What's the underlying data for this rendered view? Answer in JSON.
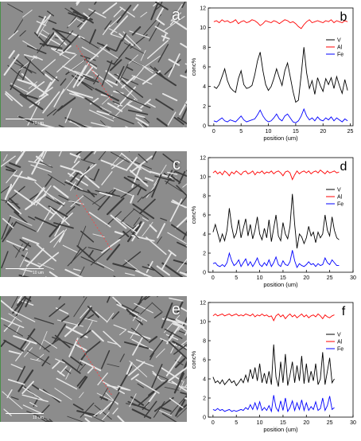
{
  "panels": [
    {
      "letter": "a",
      "scale_label": "10 um"
    },
    {
      "letter": "c",
      "scale_label": "10 um"
    },
    {
      "letter": "e",
      "scale_label": "10 um"
    }
  ],
  "chart_data": [
    {
      "type": "line",
      "letter": "b",
      "xlabel": "position (um)",
      "ylabel": "conc%",
      "xlim": [
        -1,
        25.5
      ],
      "ylim": [
        0,
        12
      ],
      "xticks": [
        0,
        5,
        10,
        15,
        20,
        25
      ],
      "yticks": [
        0,
        2,
        4,
        6,
        8,
        10,
        12
      ],
      "legend_position": "top-right",
      "series": [
        {
          "name": "V",
          "color": "#000000",
          "x": [
            0,
            0.5,
            1,
            1.5,
            2,
            2.5,
            3,
            3.5,
            4,
            4.5,
            5,
            5.5,
            6,
            6.5,
            7,
            7.5,
            8,
            8.5,
            9,
            9.5,
            10,
            10.5,
            11,
            11.5,
            12,
            12.5,
            13,
            13.5,
            14,
            14.5,
            15,
            15.5,
            16,
            16.5,
            17,
            17.5,
            18,
            18.5,
            19,
            19.5,
            20,
            20.5,
            21,
            21.5,
            22,
            22.5,
            23,
            23.5,
            24,
            24.5
          ],
          "values": [
            4.0,
            3.8,
            4.2,
            5.0,
            5.8,
            4.6,
            3.9,
            3.6,
            3.4,
            4.8,
            5.6,
            4.2,
            3.8,
            3.9,
            4.1,
            5.2,
            6.6,
            7.5,
            5.6,
            4.2,
            3.6,
            4.0,
            4.8,
            5.8,
            4.9,
            4.1,
            5.6,
            6.4,
            5.0,
            3.5,
            2.4,
            2.6,
            5.2,
            8.0,
            5.4,
            3.8,
            4.6,
            3.2,
            4.9,
            4.1,
            3.5,
            4.8,
            4.2,
            4.9,
            3.8,
            5.0,
            4.1,
            3.3,
            4.7,
            3.6
          ]
        },
        {
          "name": "Al",
          "color": "#ff0000",
          "x": [
            0,
            0.5,
            1,
            1.5,
            2,
            2.5,
            3,
            3.5,
            4,
            4.5,
            5,
            5.5,
            6,
            6.5,
            7,
            7.5,
            8,
            8.5,
            9,
            9.5,
            10,
            10.5,
            11,
            11.5,
            12,
            12.5,
            13,
            13.5,
            14,
            14.5,
            15,
            15.5,
            16,
            16.5,
            17,
            17.5,
            18,
            18.5,
            19,
            19.5,
            20,
            20.5,
            21,
            21.5,
            22,
            22.5,
            23,
            23.5,
            24,
            24.5
          ],
          "values": [
            10.6,
            10.7,
            10.5,
            10.8,
            10.6,
            10.7,
            10.5,
            10.6,
            10.8,
            10.4,
            10.6,
            10.7,
            10.5,
            10.6,
            10.8,
            10.7,
            10.5,
            10.2,
            10.4,
            10.7,
            10.6,
            10.5,
            10.7,
            10.6,
            10.4,
            10.6,
            10.8,
            10.7,
            10.5,
            10.6,
            10.4,
            10.1,
            9.9,
            10.3,
            10.6,
            10.8,
            10.5,
            10.6,
            10.7,
            10.6,
            10.5,
            10.7,
            10.6,
            10.8,
            10.5,
            10.7,
            10.6,
            10.5,
            10.7,
            10.6
          ]
        },
        {
          "name": "Fe",
          "color": "#0000ff",
          "x": [
            0,
            0.5,
            1,
            1.5,
            2,
            2.5,
            3,
            3.5,
            4,
            4.5,
            5,
            5.5,
            6,
            6.5,
            7,
            7.5,
            8,
            8.5,
            9,
            9.5,
            10,
            10.5,
            11,
            11.5,
            12,
            12.5,
            13,
            13.5,
            14,
            14.5,
            15,
            15.5,
            16,
            16.5,
            17,
            17.5,
            18,
            18.5,
            19,
            19.5,
            20,
            20.5,
            21,
            21.5,
            22,
            22.5,
            23,
            23.5,
            24,
            24.5
          ],
          "values": [
            0.5,
            0.4,
            0.6,
            0.8,
            0.5,
            0.4,
            0.6,
            0.5,
            0.4,
            0.7,
            1.0,
            0.6,
            0.4,
            0.5,
            0.6,
            0.7,
            1.1,
            1.6,
            1.0,
            0.6,
            0.4,
            0.5,
            0.8,
            1.2,
            0.7,
            0.5,
            1.0,
            1.2,
            0.8,
            0.4,
            0.3,
            0.5,
            1.0,
            1.7,
            1.0,
            0.6,
            0.8,
            0.5,
            0.9,
            0.6,
            0.5,
            0.8,
            0.6,
            0.9,
            0.5,
            0.8,
            0.6,
            0.4,
            0.7,
            0.5
          ]
        }
      ]
    },
    {
      "type": "line",
      "letter": "d",
      "xlabel": "position (um)",
      "ylabel": "conc%",
      "xlim": [
        -1,
        30
      ],
      "ylim": [
        0,
        12
      ],
      "xticks": [
        0,
        5,
        10,
        15,
        20,
        25,
        30
      ],
      "yticks": [
        0,
        2,
        4,
        6,
        8,
        10,
        12
      ],
      "legend_position": "top-right",
      "series": [
        {
          "name": "V",
          "color": "#000000",
          "x": [
            0,
            0.5,
            1,
            1.5,
            2,
            2.5,
            3,
            3.5,
            4,
            4.5,
            5,
            5.5,
            6,
            6.5,
            7,
            7.5,
            8,
            8.5,
            9,
            9.5,
            10,
            10.5,
            11,
            11.5,
            12,
            12.5,
            13,
            13.5,
            14,
            14.5,
            15,
            15.5,
            16,
            16.5,
            17,
            17.5,
            18,
            18.5,
            19,
            19.5,
            20,
            20.5,
            21,
            21.5,
            22,
            22.5,
            23,
            23.5,
            24,
            24.5,
            25,
            25.5,
            26,
            26.5,
            27
          ],
          "values": [
            4.2,
            5.0,
            4.1,
            3.2,
            4.0,
            3.3,
            4.4,
            6.7,
            4.8,
            3.6,
            4.1,
            5.5,
            3.6,
            4.6,
            5.6,
            3.8,
            5.0,
            3.5,
            4.4,
            5.8,
            4.0,
            3.4,
            4.6,
            3.6,
            5.5,
            3.2,
            4.6,
            6.0,
            3.8,
            3.3,
            5.2,
            4.0,
            3.5,
            4.8,
            8.2,
            5.0,
            2.5,
            4.0,
            3.7,
            3.0,
            3.6,
            4.8,
            3.8,
            4.2,
            3.1,
            4.2,
            3.6,
            4.0,
            6.0,
            4.4,
            3.8,
            5.8,
            4.4,
            3.6,
            3.4
          ]
        },
        {
          "name": "Al",
          "color": "#ff0000",
          "x": [
            0,
            0.5,
            1,
            1.5,
            2,
            2.5,
            3,
            3.5,
            4,
            4.5,
            5,
            5.5,
            6,
            6.5,
            7,
            7.5,
            8,
            8.5,
            9,
            9.5,
            10,
            10.5,
            11,
            11.5,
            12,
            12.5,
            13,
            13.5,
            14,
            14.5,
            15,
            15.5,
            16,
            16.5,
            17,
            17.5,
            18,
            18.5,
            19,
            19.5,
            20,
            20.5,
            21,
            21.5,
            22,
            22.5,
            23,
            23.5,
            24,
            24.5,
            25,
            25.5,
            26,
            26.5,
            27
          ],
          "values": [
            10.4,
            10.6,
            10.3,
            10.5,
            10.2,
            10.6,
            10.4,
            10.1,
            10.5,
            10.3,
            10.6,
            10.4,
            10.2,
            10.5,
            10.6,
            10.3,
            10.4,
            10.6,
            10.2,
            10.5,
            10.4,
            10.6,
            10.3,
            10.5,
            10.4,
            10.6,
            10.3,
            10.5,
            10.6,
            10.4,
            10.1,
            10.5,
            10.6,
            10.4,
            9.7,
            10.2,
            10.6,
            10.3,
            10.5,
            10.6,
            10.4,
            10.6,
            10.3,
            10.5,
            10.6,
            10.4,
            10.7,
            10.5,
            10.3,
            10.6,
            10.4,
            10.5,
            10.6,
            10.4,
            10.5
          ]
        },
        {
          "name": "Fe",
          "color": "#0000ff",
          "x": [
            0,
            0.5,
            1,
            1.5,
            2,
            2.5,
            3,
            3.5,
            4,
            4.5,
            5,
            5.5,
            6,
            6.5,
            7,
            7.5,
            8,
            8.5,
            9,
            9.5,
            10,
            10.5,
            11,
            11.5,
            12,
            12.5,
            13,
            13.5,
            14,
            14.5,
            15,
            15.5,
            16,
            16.5,
            17,
            17.5,
            18,
            18.5,
            19,
            19.5,
            20,
            20.5,
            21,
            21.5,
            22,
            22.5,
            23,
            23.5,
            24,
            24.5,
            25,
            25.5,
            26,
            26.5,
            27
          ],
          "values": [
            0.9,
            1.0,
            0.7,
            0.6,
            0.8,
            0.6,
            1.0,
            2.0,
            1.2,
            0.7,
            0.9,
            1.3,
            0.6,
            1.0,
            1.4,
            0.7,
            1.1,
            0.6,
            1.0,
            1.5,
            0.8,
            0.6,
            1.0,
            0.7,
            1.3,
            0.6,
            1.0,
            1.6,
            0.8,
            0.6,
            1.2,
            0.8,
            0.7,
            1.1,
            2.3,
            1.2,
            0.5,
            0.9,
            0.7,
            0.6,
            0.8,
            1.1,
            0.8,
            0.9,
            0.6,
            0.9,
            0.7,
            0.8,
            1.5,
            1.0,
            0.8,
            1.3,
            1.0,
            0.7,
            0.7
          ]
        }
      ]
    },
    {
      "type": "line",
      "letter": "f",
      "xlabel": "position (um)",
      "ylabel": "conc%",
      "xlim": [
        -1,
        30
      ],
      "ylim": [
        0,
        12
      ],
      "xticks": [
        0,
        5,
        10,
        15,
        20,
        25,
        30
      ],
      "yticks": [
        0,
        2,
        4,
        6,
        8,
        10,
        12
      ],
      "legend_position": "top-right",
      "series": [
        {
          "name": "V",
          "color": "#000000",
          "x": [
            0,
            0.5,
            1,
            1.5,
            2,
            2.5,
            3,
            3.5,
            4,
            4.5,
            5,
            5.5,
            6,
            6.5,
            7,
            7.5,
            8,
            8.5,
            9,
            9.5,
            10,
            10.5,
            11,
            11.5,
            12,
            12.5,
            13,
            13.5,
            14,
            14.5,
            15,
            15.5,
            16,
            16.5,
            17,
            17.5,
            18,
            18.5,
            19,
            19.5,
            20,
            20.5,
            21,
            21.5,
            22,
            22.5,
            23,
            23.5,
            24,
            24.5,
            25,
            25.5,
            26
          ],
          "values": [
            4.2,
            3.6,
            3.8,
            3.5,
            3.9,
            3.4,
            3.7,
            4.0,
            3.6,
            3.8,
            3.3,
            3.6,
            4.0,
            3.6,
            4.4,
            3.7,
            5.0,
            4.0,
            5.2,
            3.8,
            5.6,
            3.6,
            4.6,
            3.5,
            4.8,
            3.4,
            7.6,
            4.2,
            3.2,
            5.8,
            3.6,
            6.6,
            3.3,
            4.4,
            5.8,
            3.6,
            5.4,
            3.8,
            6.4,
            3.5,
            5.6,
            3.6,
            4.8,
            3.8,
            5.6,
            3.4,
            4.0,
            6.8,
            3.4,
            4.8,
            6.2,
            3.6,
            4.0
          ]
        },
        {
          "name": "Al",
          "color": "#ff0000",
          "x": [
            0,
            0.5,
            1,
            1.5,
            2,
            2.5,
            3,
            3.5,
            4,
            4.5,
            5,
            5.5,
            6,
            6.5,
            7,
            7.5,
            8,
            8.5,
            9,
            9.5,
            10,
            10.5,
            11,
            11.5,
            12,
            12.5,
            13,
            13.5,
            14,
            14.5,
            15,
            15.5,
            16,
            16.5,
            17,
            17.5,
            18,
            18.5,
            19,
            19.5,
            20,
            20.5,
            21,
            21.5,
            22,
            22.5,
            23,
            23.5,
            24,
            24.5,
            25,
            25.5,
            26
          ],
          "values": [
            10.6,
            10.8,
            10.6,
            10.7,
            10.8,
            10.6,
            10.7,
            10.8,
            10.6,
            10.7,
            10.8,
            10.6,
            10.7,
            10.6,
            10.8,
            10.7,
            10.6,
            10.8,
            10.5,
            10.7,
            10.6,
            10.8,
            10.6,
            10.7,
            10.5,
            10.6,
            10.1,
            10.6,
            10.8,
            10.5,
            10.7,
            10.3,
            10.6,
            10.8,
            10.5,
            10.7,
            10.4,
            10.6,
            10.8,
            10.5,
            10.7,
            10.4,
            10.6,
            10.7,
            10.5,
            10.8,
            10.6,
            10.3,
            10.7,
            10.5,
            10.4,
            10.6,
            10.7
          ]
        },
        {
          "name": "Fe",
          "color": "#0000ff",
          "x": [
            0,
            0.5,
            1,
            1.5,
            2,
            2.5,
            3,
            3.5,
            4,
            4.5,
            5,
            5.5,
            6,
            6.5,
            7,
            7.5,
            8,
            8.5,
            9,
            9.5,
            10,
            10.5,
            11,
            11.5,
            12,
            12.5,
            13,
            13.5,
            14,
            14.5,
            15,
            15.5,
            16,
            16.5,
            17,
            17.5,
            18,
            18.5,
            19,
            19.5,
            20,
            20.5,
            21,
            21.5,
            22,
            22.5,
            23,
            23.5,
            24,
            24.5,
            25,
            25.5,
            26
          ],
          "values": [
            0.8,
            0.7,
            0.9,
            0.7,
            0.8,
            0.6,
            0.7,
            0.8,
            0.6,
            0.7,
            0.6,
            0.7,
            0.8,
            0.7,
            1.0,
            0.8,
            1.3,
            0.8,
            1.5,
            0.8,
            1.6,
            0.7,
            1.0,
            0.7,
            1.2,
            0.6,
            2.3,
            1.0,
            0.6,
            1.7,
            0.7,
            2.0,
            0.6,
            1.0,
            1.7,
            0.7,
            1.5,
            0.8,
            1.8,
            0.7,
            1.5,
            0.7,
            1.1,
            0.8,
            1.6,
            0.7,
            0.9,
            2.0,
            0.7,
            1.2,
            2.2,
            0.8,
            1.0
          ]
        }
      ]
    }
  ]
}
